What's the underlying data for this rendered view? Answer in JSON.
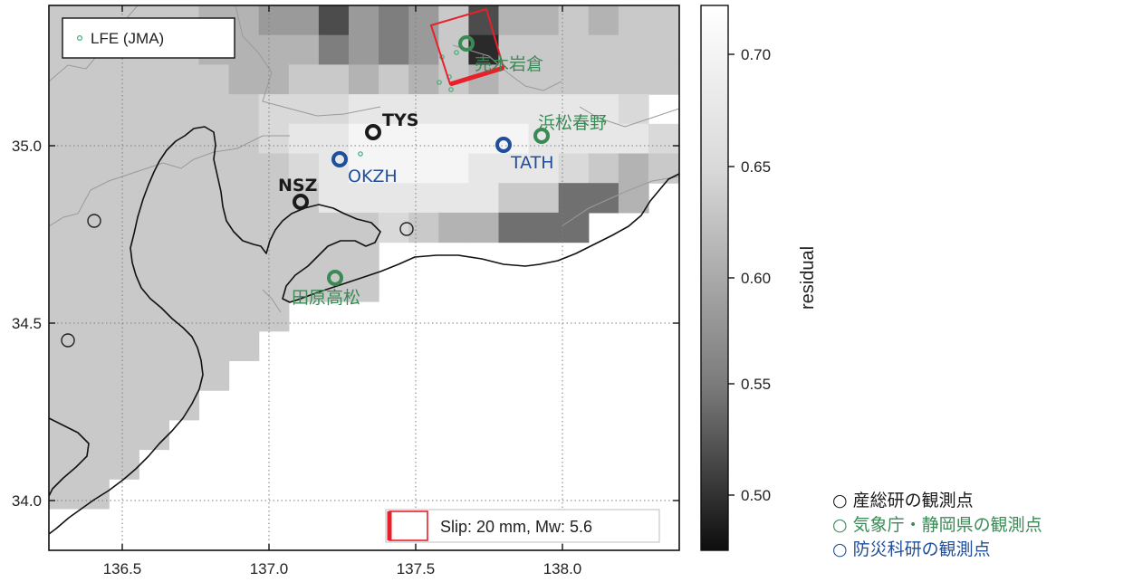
{
  "axes": {
    "x_ticks": [
      "136.5",
      "137.0",
      "137.5",
      "138.0"
    ],
    "y_ticks": [
      "35.0",
      "34.5",
      "34.0"
    ]
  },
  "map_legend": {
    "marker_label": "LFE (JMA)"
  },
  "slip_legend": {
    "label": "Slip: 20 mm, Mw: 5.6"
  },
  "colorbar": {
    "label": "residual",
    "ticks": [
      "0.70",
      "0.65",
      "0.60",
      "0.55",
      "0.50"
    ]
  },
  "stations": {
    "aist": [
      {
        "code": "TYS"
      },
      {
        "code": "NSZ"
      }
    ],
    "jma_shizuoka": [
      {
        "name": "浜松春野"
      },
      {
        "name": "田原高松"
      },
      {
        "name": "売木岩倉"
      }
    ],
    "nied": [
      {
        "code": "OKZH"
      },
      {
        "code": "TATH"
      }
    ]
  },
  "legend": {
    "aist": "○ 産総研の観測点",
    "jma": "○ 気象庁・静岡県の観測点",
    "nied": "○ 防災科研の観測点"
  },
  "colors": {
    "aist": "#1a1a1a",
    "jma": "#3a8a55",
    "nied": "#1f4e9c",
    "fault": "#e8202a"
  }
}
